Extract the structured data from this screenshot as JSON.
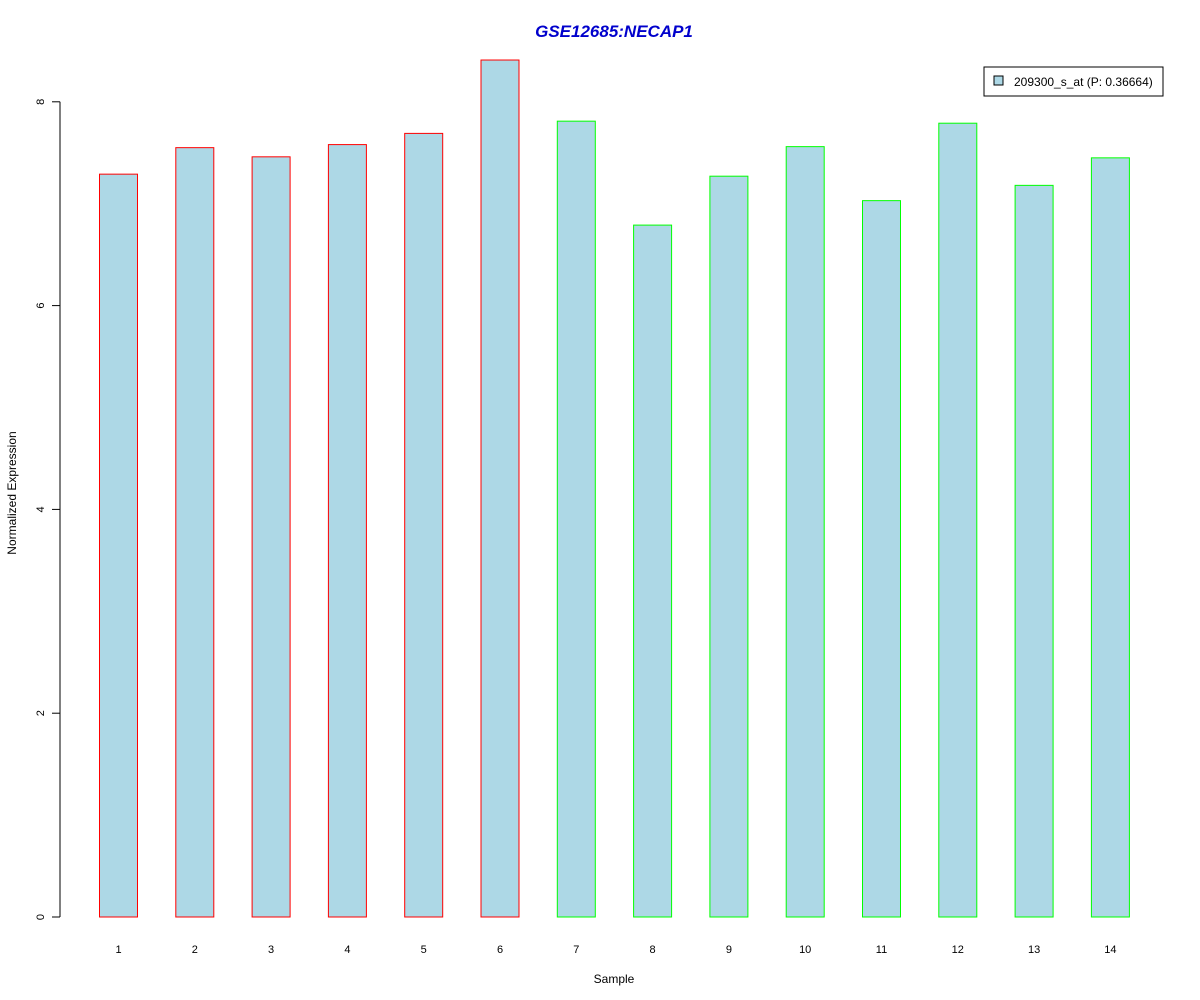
{
  "chart_data": {
    "type": "bar",
    "title": "GSE12685:NECAP1",
    "xlabel": "Sample",
    "ylabel": "Normalized Expression",
    "categories": [
      "1",
      "2",
      "3",
      "4",
      "5",
      "6",
      "7",
      "8",
      "9",
      "10",
      "11",
      "12",
      "13",
      "14"
    ],
    "series": [
      {
        "name": "209300_s_at (P: 0.36664)",
        "values": [
          7.29,
          7.55,
          7.46,
          7.58,
          7.69,
          8.41,
          7.81,
          6.79,
          7.27,
          7.56,
          7.03,
          7.79,
          7.18,
          7.45
        ]
      }
    ],
    "bar_fill": "#add8e6",
    "bar_borders": [
      "#ff0000",
      "#ff0000",
      "#ff0000",
      "#ff0000",
      "#ff0000",
      "#ff0000",
      "#00ff00",
      "#00ff00",
      "#00ff00",
      "#00ff00",
      "#00ff00",
      "#00ff00",
      "#00ff00",
      "#00ff00"
    ],
    "title_color": "#0000cc",
    "yticks": [
      0,
      2,
      4,
      6,
      8
    ],
    "ylim": [
      0,
      8.41
    ],
    "grid": false,
    "legend_position": "top-right"
  }
}
